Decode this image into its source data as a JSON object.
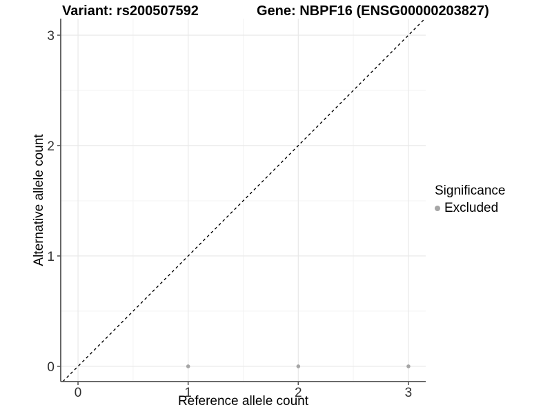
{
  "chart_data": {
    "type": "scatter",
    "title_left": "Variant: rs200507592",
    "title_right": "Gene: NBPF16 (ENSG00000203827)",
    "xlabel": "Reference allele count",
    "ylabel": "Alternative allele count",
    "xlim": [
      -0.157,
      3.157
    ],
    "ylim": [
      -0.138,
      3.15
    ],
    "xticks": [
      0,
      1,
      2,
      3
    ],
    "yticks": [
      0,
      1,
      2,
      3
    ],
    "minor_ticks_x": [
      0.5,
      1.5,
      2.5
    ],
    "minor_ticks_y": [
      0.5,
      1.5,
      2.5
    ],
    "grid": "major+minor",
    "legend_position": "right",
    "legend_title": "Significance",
    "series": [
      {
        "name": "Excluded",
        "color": "#a6a6a6",
        "marker": "circle",
        "point_radius": 2.8,
        "points": [
          [
            1,
            0
          ],
          [
            2,
            0
          ],
          [
            3,
            0
          ]
        ]
      }
    ],
    "reference_line": {
      "type": "identity",
      "style": "dashed",
      "color": "#000000"
    }
  },
  "colors": {
    "background": "#ffffff",
    "grid_major": "#e8e8e8",
    "grid_minor": "#f3f3f3",
    "axis_line": "#555555",
    "tick_mark": "#555555",
    "tick_text": "#303030"
  }
}
